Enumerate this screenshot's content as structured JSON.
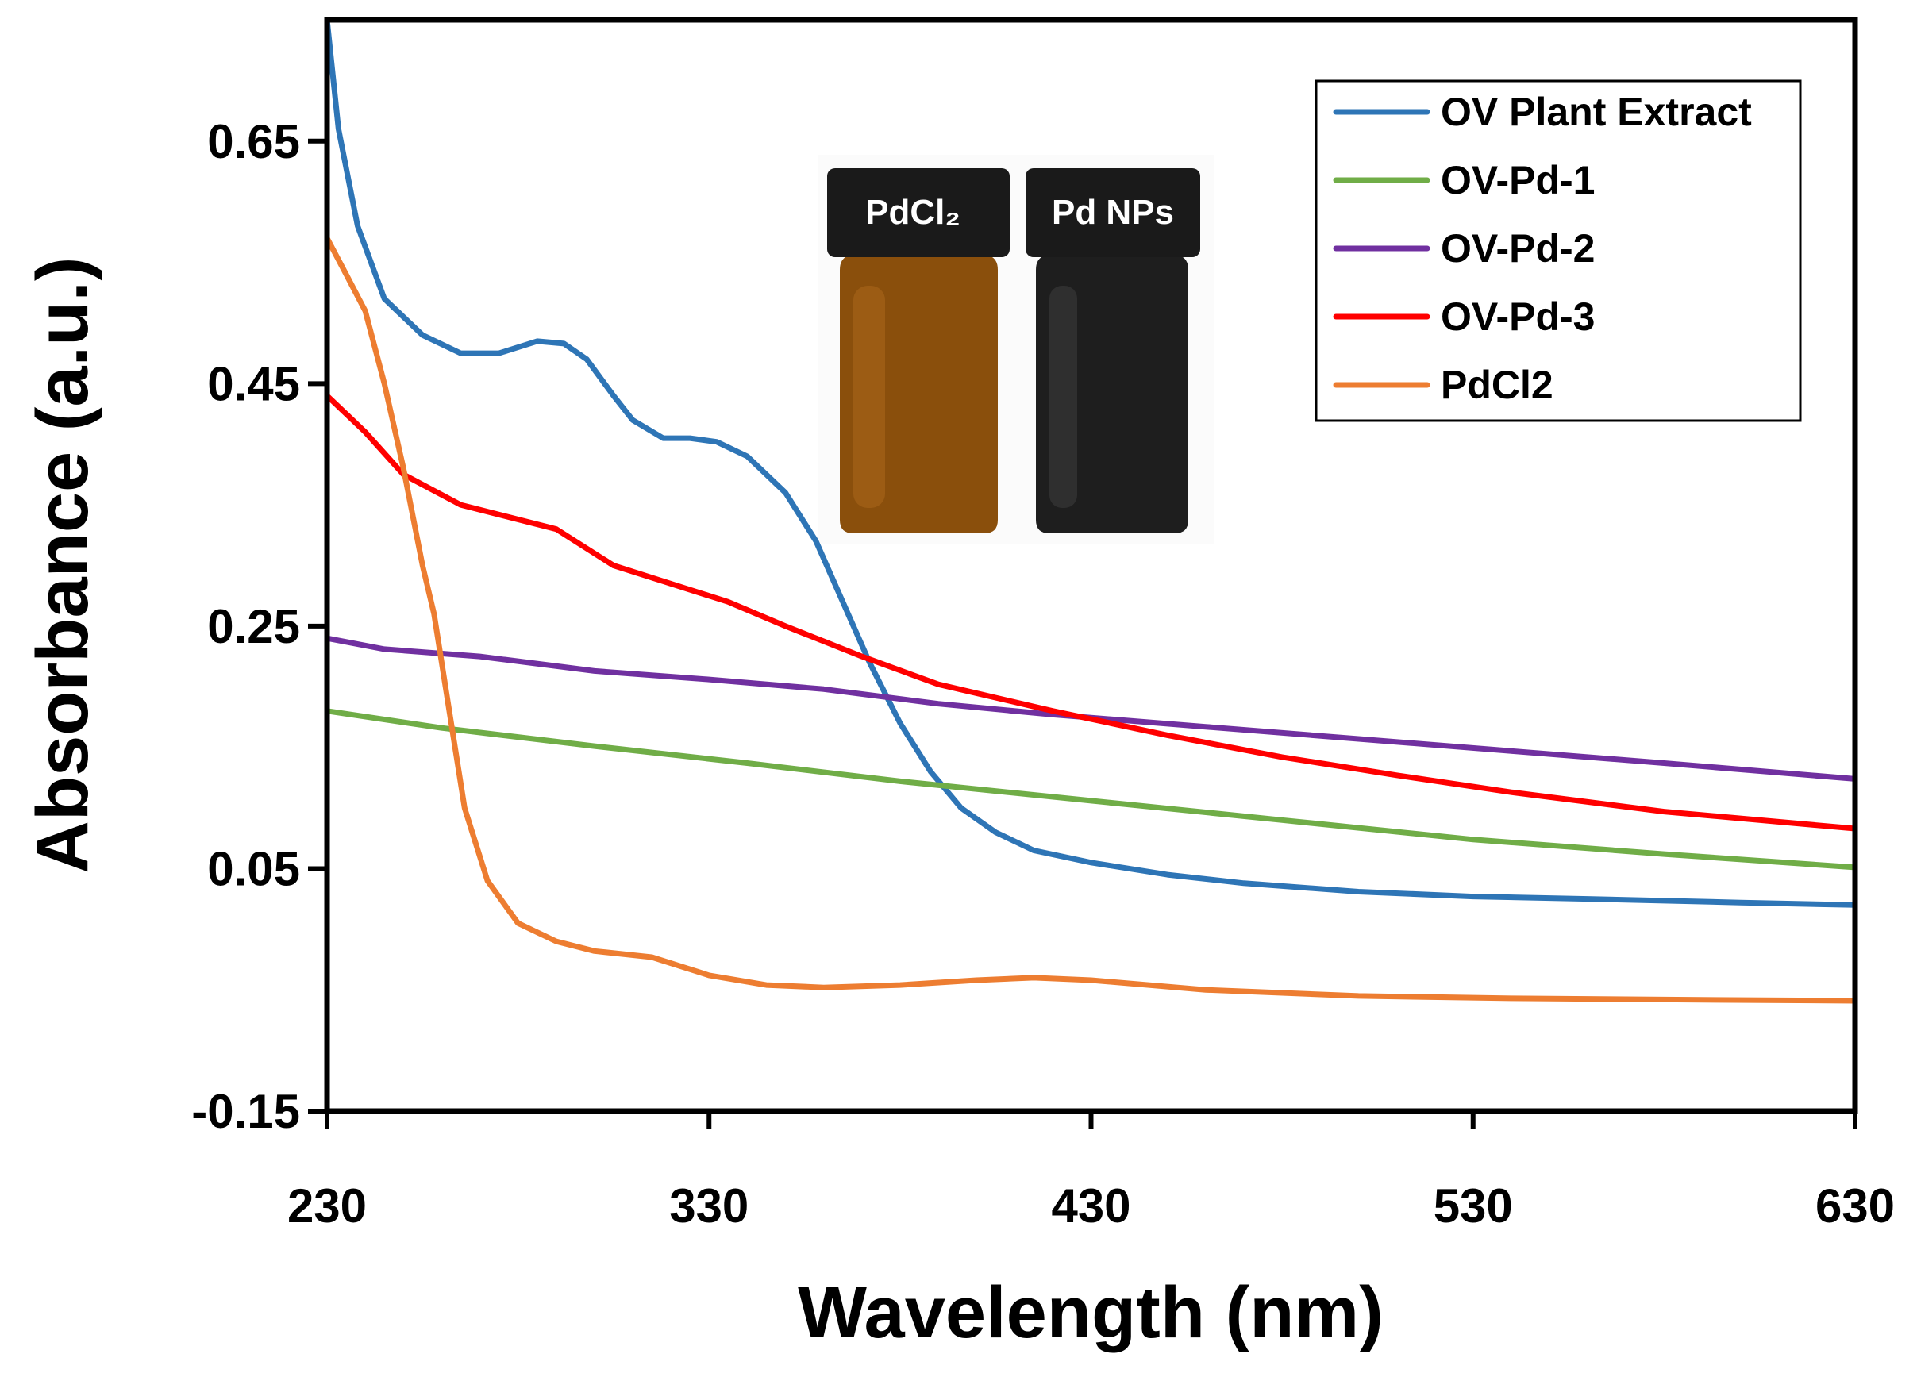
{
  "chart_data": {
    "type": "line",
    "title": "",
    "xlabel": "Wavelength (nm)",
    "ylabel": "Absorbance (a.u.)",
    "xlim": [
      230,
      630
    ],
    "ylim": [
      -0.15,
      0.75
    ],
    "x_ticks": [
      230,
      330,
      430,
      530,
      630
    ],
    "x_tick_labels": [
      "230",
      "330",
      "430",
      "530",
      "630"
    ],
    "y_ticks": [
      -0.15,
      0.05,
      0.25,
      0.45,
      0.65
    ],
    "y_tick_labels": [
      "-0.15",
      "0.05",
      "0.25",
      "0.45",
      "0.65"
    ],
    "grid": false,
    "legend_position": "top-right",
    "series": [
      {
        "name": "OV Plant Extract",
        "color": "#2e75b6",
        "points": [
          [
            230,
            0.75
          ],
          [
            233,
            0.66
          ],
          [
            238,
            0.58
          ],
          [
            245,
            0.52
          ],
          [
            255,
            0.49
          ],
          [
            265,
            0.475
          ],
          [
            275,
            0.475
          ],
          [
            285,
            0.485
          ],
          [
            292,
            0.483
          ],
          [
            298,
            0.47
          ],
          [
            305,
            0.44
          ],
          [
            310,
            0.42
          ],
          [
            318,
            0.405
          ],
          [
            325,
            0.405
          ],
          [
            332,
            0.402
          ],
          [
            340,
            0.39
          ],
          [
            350,
            0.36
          ],
          [
            358,
            0.32
          ],
          [
            365,
            0.27
          ],
          [
            372,
            0.22
          ],
          [
            380,
            0.17
          ],
          [
            388,
            0.13
          ],
          [
            396,
            0.1
          ],
          [
            405,
            0.08
          ],
          [
            415,
            0.065
          ],
          [
            430,
            0.055
          ],
          [
            450,
            0.045
          ],
          [
            470,
            0.038
          ],
          [
            500,
            0.031
          ],
          [
            530,
            0.027
          ],
          [
            560,
            0.025
          ],
          [
            600,
            0.022
          ],
          [
            630,
            0.02
          ]
        ]
      },
      {
        "name": "OV-Pd-1",
        "color": "#70ad47",
        "points": [
          [
            230,
            0.18
          ],
          [
            260,
            0.166
          ],
          [
            300,
            0.151
          ],
          [
            340,
            0.137
          ],
          [
            380,
            0.122
          ],
          [
            430,
            0.106
          ],
          [
            480,
            0.09
          ],
          [
            530,
            0.074
          ],
          [
            580,
            0.062
          ],
          [
            630,
            0.051
          ]
        ]
      },
      {
        "name": "OV-Pd-2",
        "color": "#7030a0",
        "points": [
          [
            230,
            0.24
          ],
          [
            245,
            0.231
          ],
          [
            270,
            0.225
          ],
          [
            300,
            0.213
          ],
          [
            330,
            0.206
          ],
          [
            360,
            0.198
          ],
          [
            390,
            0.186
          ],
          [
            420,
            0.177
          ],
          [
            460,
            0.167
          ],
          [
            500,
            0.157
          ],
          [
            540,
            0.147
          ],
          [
            580,
            0.137
          ],
          [
            630,
            0.124
          ]
        ]
      },
      {
        "name": "OV-Pd-3",
        "color": "#ff0000",
        "points": [
          [
            230,
            0.44
          ],
          [
            240,
            0.41
          ],
          [
            250,
            0.375
          ],
          [
            265,
            0.35
          ],
          [
            290,
            0.33
          ],
          [
            305,
            0.3
          ],
          [
            320,
            0.285
          ],
          [
            335,
            0.27
          ],
          [
            350,
            0.25
          ],
          [
            370,
            0.225
          ],
          [
            390,
            0.202
          ],
          [
            420,
            0.18
          ],
          [
            450,
            0.16
          ],
          [
            480,
            0.142
          ],
          [
            510,
            0.127
          ],
          [
            540,
            0.113
          ],
          [
            580,
            0.097
          ],
          [
            630,
            0.083
          ]
        ]
      },
      {
        "name": "PdCl2",
        "color": "#ed7d31",
        "points": [
          [
            230,
            0.57
          ],
          [
            235,
            0.54
          ],
          [
            240,
            0.51
          ],
          [
            245,
            0.45
          ],
          [
            250,
            0.38
          ],
          [
            255,
            0.3
          ],
          [
            258,
            0.26
          ],
          [
            262,
            0.18
          ],
          [
            266,
            0.1
          ],
          [
            272,
            0.04
          ],
          [
            280,
            0.005
          ],
          [
            290,
            -0.01
          ],
          [
            300,
            -0.018
          ],
          [
            315,
            -0.023
          ],
          [
            330,
            -0.038
          ],
          [
            345,
            -0.046
          ],
          [
            360,
            -0.048
          ],
          [
            380,
            -0.046
          ],
          [
            400,
            -0.042
          ],
          [
            415,
            -0.04
          ],
          [
            430,
            -0.042
          ],
          [
            460,
            -0.05
          ],
          [
            500,
            -0.055
          ],
          [
            540,
            -0.057
          ],
          [
            580,
            -0.058
          ],
          [
            630,
            -0.059
          ]
        ]
      }
    ]
  },
  "inset": {
    "vial_labels": [
      "PdCl₂",
      "Pd NPs"
    ],
    "vial_colors": [
      "#8a4f0c",
      "#1e1e1e"
    ]
  }
}
